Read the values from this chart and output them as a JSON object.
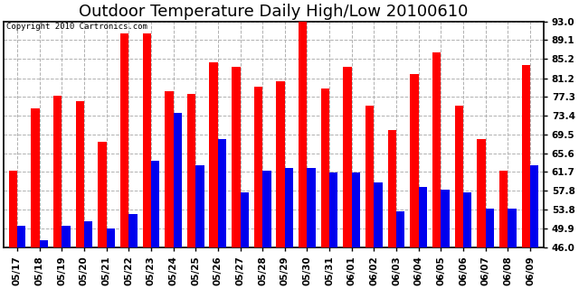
{
  "title": "Outdoor Temperature Daily High/Low 20100610",
  "copyright": "Copyright 2010 Cartronics.com",
  "dates": [
    "05/17",
    "05/18",
    "05/19",
    "05/20",
    "05/21",
    "05/22",
    "05/23",
    "05/24",
    "05/25",
    "05/26",
    "05/27",
    "05/28",
    "05/29",
    "05/30",
    "05/31",
    "06/01",
    "06/02",
    "06/03",
    "06/04",
    "06/05",
    "06/06",
    "06/07",
    "06/08",
    "06/09"
  ],
  "highs": [
    62.0,
    75.0,
    77.5,
    76.5,
    68.0,
    90.5,
    90.5,
    78.5,
    78.0,
    84.5,
    83.5,
    79.5,
    80.5,
    93.0,
    79.0,
    83.5,
    75.5,
    70.5,
    82.0,
    86.5,
    75.5,
    68.5,
    62.0,
    84.0
  ],
  "lows": [
    50.5,
    47.5,
    50.5,
    51.5,
    50.0,
    53.0,
    64.0,
    74.0,
    63.0,
    68.5,
    57.5,
    62.0,
    62.5,
    62.5,
    61.5,
    61.5,
    59.5,
    53.5,
    58.5,
    58.0,
    57.5,
    54.0,
    54.0,
    63.0
  ],
  "high_color": "#ff0000",
  "low_color": "#0000ee",
  "background_color": "#ffffff",
  "plot_bg_color": "#ffffff",
  "grid_color": "#b0b0b0",
  "yticks": [
    46.0,
    49.9,
    53.8,
    57.8,
    61.7,
    65.6,
    69.5,
    73.4,
    77.3,
    81.2,
    85.2,
    89.1,
    93.0
  ],
  "ymin": 46.0,
  "ymax": 93.0,
  "bar_width": 0.38,
  "title_fontsize": 13,
  "tick_fontsize": 7.5,
  "copyright_fontsize": 6.5
}
